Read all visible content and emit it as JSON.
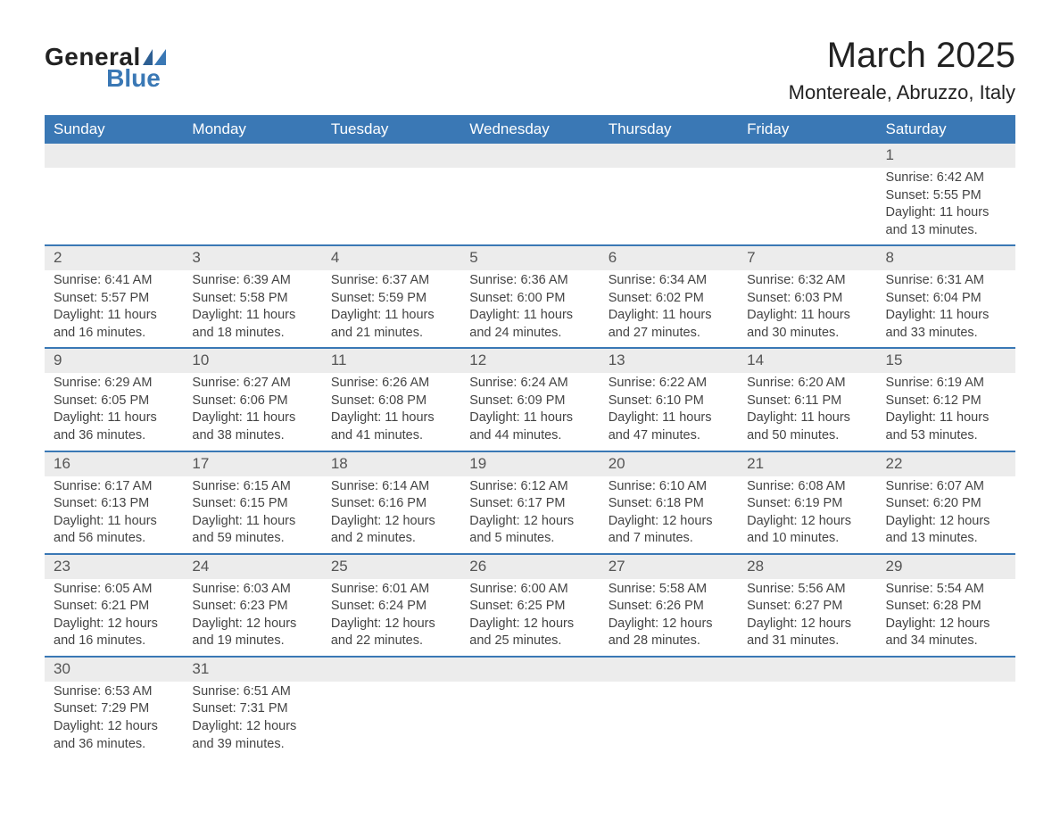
{
  "logo": {
    "top": "General",
    "bottom": "Blue"
  },
  "title": "March 2025",
  "location": "Montereale, Abruzzo, Italy",
  "colors": {
    "header_bg": "#3a78b5",
    "header_text": "#ffffff",
    "daynum_bg": "#ececec",
    "row_border": "#3a78b5",
    "text": "#444444",
    "page_bg": "#ffffff"
  },
  "day_headers": [
    "Sunday",
    "Monday",
    "Tuesday",
    "Wednesday",
    "Thursday",
    "Friday",
    "Saturday"
  ],
  "weeks": [
    [
      null,
      null,
      null,
      null,
      null,
      null,
      {
        "n": "1",
        "sr": "Sunrise: 6:42 AM",
        "ss": "Sunset: 5:55 PM",
        "d1": "Daylight: 11 hours",
        "d2": "and 13 minutes."
      }
    ],
    [
      {
        "n": "2",
        "sr": "Sunrise: 6:41 AM",
        "ss": "Sunset: 5:57 PM",
        "d1": "Daylight: 11 hours",
        "d2": "and 16 minutes."
      },
      {
        "n": "3",
        "sr": "Sunrise: 6:39 AM",
        "ss": "Sunset: 5:58 PM",
        "d1": "Daylight: 11 hours",
        "d2": "and 18 minutes."
      },
      {
        "n": "4",
        "sr": "Sunrise: 6:37 AM",
        "ss": "Sunset: 5:59 PM",
        "d1": "Daylight: 11 hours",
        "d2": "and 21 minutes."
      },
      {
        "n": "5",
        "sr": "Sunrise: 6:36 AM",
        "ss": "Sunset: 6:00 PM",
        "d1": "Daylight: 11 hours",
        "d2": "and 24 minutes."
      },
      {
        "n": "6",
        "sr": "Sunrise: 6:34 AM",
        "ss": "Sunset: 6:02 PM",
        "d1": "Daylight: 11 hours",
        "d2": "and 27 minutes."
      },
      {
        "n": "7",
        "sr": "Sunrise: 6:32 AM",
        "ss": "Sunset: 6:03 PM",
        "d1": "Daylight: 11 hours",
        "d2": "and 30 minutes."
      },
      {
        "n": "8",
        "sr": "Sunrise: 6:31 AM",
        "ss": "Sunset: 6:04 PM",
        "d1": "Daylight: 11 hours",
        "d2": "and 33 minutes."
      }
    ],
    [
      {
        "n": "9",
        "sr": "Sunrise: 6:29 AM",
        "ss": "Sunset: 6:05 PM",
        "d1": "Daylight: 11 hours",
        "d2": "and 36 minutes."
      },
      {
        "n": "10",
        "sr": "Sunrise: 6:27 AM",
        "ss": "Sunset: 6:06 PM",
        "d1": "Daylight: 11 hours",
        "d2": "and 38 minutes."
      },
      {
        "n": "11",
        "sr": "Sunrise: 6:26 AM",
        "ss": "Sunset: 6:08 PM",
        "d1": "Daylight: 11 hours",
        "d2": "and 41 minutes."
      },
      {
        "n": "12",
        "sr": "Sunrise: 6:24 AM",
        "ss": "Sunset: 6:09 PM",
        "d1": "Daylight: 11 hours",
        "d2": "and 44 minutes."
      },
      {
        "n": "13",
        "sr": "Sunrise: 6:22 AM",
        "ss": "Sunset: 6:10 PM",
        "d1": "Daylight: 11 hours",
        "d2": "and 47 minutes."
      },
      {
        "n": "14",
        "sr": "Sunrise: 6:20 AM",
        "ss": "Sunset: 6:11 PM",
        "d1": "Daylight: 11 hours",
        "d2": "and 50 minutes."
      },
      {
        "n": "15",
        "sr": "Sunrise: 6:19 AM",
        "ss": "Sunset: 6:12 PM",
        "d1": "Daylight: 11 hours",
        "d2": "and 53 minutes."
      }
    ],
    [
      {
        "n": "16",
        "sr": "Sunrise: 6:17 AM",
        "ss": "Sunset: 6:13 PM",
        "d1": "Daylight: 11 hours",
        "d2": "and 56 minutes."
      },
      {
        "n": "17",
        "sr": "Sunrise: 6:15 AM",
        "ss": "Sunset: 6:15 PM",
        "d1": "Daylight: 11 hours",
        "d2": "and 59 minutes."
      },
      {
        "n": "18",
        "sr": "Sunrise: 6:14 AM",
        "ss": "Sunset: 6:16 PM",
        "d1": "Daylight: 12 hours",
        "d2": "and 2 minutes."
      },
      {
        "n": "19",
        "sr": "Sunrise: 6:12 AM",
        "ss": "Sunset: 6:17 PM",
        "d1": "Daylight: 12 hours",
        "d2": "and 5 minutes."
      },
      {
        "n": "20",
        "sr": "Sunrise: 6:10 AM",
        "ss": "Sunset: 6:18 PM",
        "d1": "Daylight: 12 hours",
        "d2": "and 7 minutes."
      },
      {
        "n": "21",
        "sr": "Sunrise: 6:08 AM",
        "ss": "Sunset: 6:19 PM",
        "d1": "Daylight: 12 hours",
        "d2": "and 10 minutes."
      },
      {
        "n": "22",
        "sr": "Sunrise: 6:07 AM",
        "ss": "Sunset: 6:20 PM",
        "d1": "Daylight: 12 hours",
        "d2": "and 13 minutes."
      }
    ],
    [
      {
        "n": "23",
        "sr": "Sunrise: 6:05 AM",
        "ss": "Sunset: 6:21 PM",
        "d1": "Daylight: 12 hours",
        "d2": "and 16 minutes."
      },
      {
        "n": "24",
        "sr": "Sunrise: 6:03 AM",
        "ss": "Sunset: 6:23 PM",
        "d1": "Daylight: 12 hours",
        "d2": "and 19 minutes."
      },
      {
        "n": "25",
        "sr": "Sunrise: 6:01 AM",
        "ss": "Sunset: 6:24 PM",
        "d1": "Daylight: 12 hours",
        "d2": "and 22 minutes."
      },
      {
        "n": "26",
        "sr": "Sunrise: 6:00 AM",
        "ss": "Sunset: 6:25 PM",
        "d1": "Daylight: 12 hours",
        "d2": "and 25 minutes."
      },
      {
        "n": "27",
        "sr": "Sunrise: 5:58 AM",
        "ss": "Sunset: 6:26 PM",
        "d1": "Daylight: 12 hours",
        "d2": "and 28 minutes."
      },
      {
        "n": "28",
        "sr": "Sunrise: 5:56 AM",
        "ss": "Sunset: 6:27 PM",
        "d1": "Daylight: 12 hours",
        "d2": "and 31 minutes."
      },
      {
        "n": "29",
        "sr": "Sunrise: 5:54 AM",
        "ss": "Sunset: 6:28 PM",
        "d1": "Daylight: 12 hours",
        "d2": "and 34 minutes."
      }
    ],
    [
      {
        "n": "30",
        "sr": "Sunrise: 6:53 AM",
        "ss": "Sunset: 7:29 PM",
        "d1": "Daylight: 12 hours",
        "d2": "and 36 minutes."
      },
      {
        "n": "31",
        "sr": "Sunrise: 6:51 AM",
        "ss": "Sunset: 7:31 PM",
        "d1": "Daylight: 12 hours",
        "d2": "and 39 minutes."
      },
      null,
      null,
      null,
      null,
      null
    ]
  ]
}
